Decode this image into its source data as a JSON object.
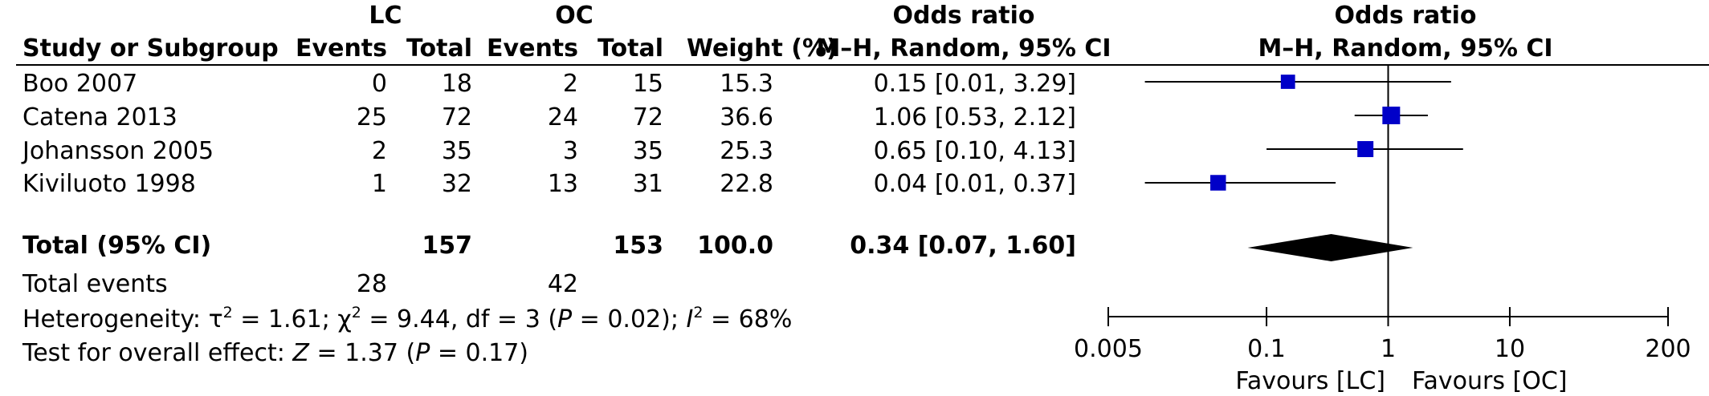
{
  "header": {
    "group1": "LC",
    "group2": "OC",
    "or_top1": "Odds ratio",
    "or_sub1": "M–H, Random, 95% CI",
    "or_top2": "Odds ratio",
    "or_sub2": "M–H, Random, 95% CI",
    "study": "Study or Subgroup",
    "events": "Events",
    "total": "Total",
    "weight": "Weight (%)"
  },
  "studies": [
    {
      "name": "Boo 2007",
      "e1": "0",
      "t1": "18",
      "e2": "2",
      "t2": "15",
      "w": "15.3",
      "ci": "0.15 [0.01, 3.29]"
    },
    {
      "name": "Catena 2013",
      "e1": "25",
      "t1": "72",
      "e2": "24",
      "t2": "72",
      "w": "36.6",
      "ci": "1.06 [0.53, 2.12]"
    },
    {
      "name": "Johansson 2005",
      "e1": "2",
      "t1": "35",
      "e2": "3",
      "t2": "35",
      "w": "25.3",
      "ci": "0.65 [0.10, 4.13]"
    },
    {
      "name": "Kiviluoto 1998",
      "e1": "1",
      "t1": "32",
      "e2": "13",
      "t2": "31",
      "w": "22.8",
      "ci": "0.04 [0.01, 0.37]"
    }
  ],
  "total_row": {
    "label": "Total (95% CI)",
    "t1": "157",
    "t2": "153",
    "w": "100.0",
    "ci": "0.34 [0.07, 1.60]"
  },
  "events_row": {
    "label": "Total events",
    "e1": "28",
    "e2": "42"
  },
  "heterogeneity": {
    "label": "Heterogeneity: ",
    "tau": "τ",
    "tau_val": " = 1.61; ",
    "chi": "χ",
    "chi_val": " = 9.44, df = 3 (",
    "p_sym": "P",
    "p_val": " = 0.02); ",
    "i_sym": "I",
    "i_val": " = 68%",
    "sq": "2"
  },
  "overall": {
    "label": "Test for overall effect: ",
    "z_sym": "Z",
    "z_val": " = 1.37 (",
    "p_sym": "P",
    "p_val": " = 0.17)"
  },
  "footer": {
    "fav_left": "Favours [LC]",
    "fav_right": "Favours [OC]"
  },
  "chart_data": {
    "type": "forest",
    "scale": "log",
    "xlim": [
      0.005,
      200
    ],
    "ticks": [
      {
        "value": 0.005,
        "label": "0.005"
      },
      {
        "value": 0.1,
        "label": "0.1"
      },
      {
        "value": 1,
        "label": "1"
      },
      {
        "value": 10,
        "label": "10"
      },
      {
        "value": 200,
        "label": "200"
      }
    ],
    "point_color": "#0000c8",
    "studies": [
      {
        "or": 0.15,
        "lo": 0.01,
        "hi": 3.29,
        "weight": 15.3
      },
      {
        "or": 1.06,
        "lo": 0.53,
        "hi": 2.12,
        "weight": 36.6
      },
      {
        "or": 0.65,
        "lo": 0.1,
        "hi": 4.13,
        "weight": 25.3
      },
      {
        "or": 0.04,
        "lo": 0.01,
        "hi": 0.37,
        "weight": 22.8
      }
    ],
    "pooled": {
      "or": 0.34,
      "lo": 0.07,
      "hi": 1.6
    }
  }
}
